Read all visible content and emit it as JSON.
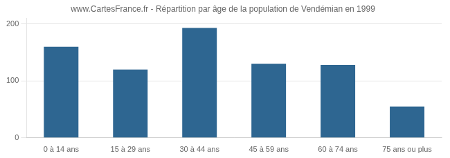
{
  "chart_data": {
    "type": "bar",
    "title": "www.CartesFrance.fr - Répartition par âge de la population de Vendémian en 1999",
    "categories": [
      "0 à 14 ans",
      "15 à 29 ans",
      "30 à 44 ans",
      "45 à 59 ans",
      "60 à 74 ans",
      "75 ans ou plus"
    ],
    "values": [
      160,
      120,
      193,
      130,
      128,
      55
    ],
    "color": "#2e6691",
    "ylim": [
      0,
      210
    ],
    "yticks": [
      0,
      100,
      200
    ],
    "grid": true
  }
}
